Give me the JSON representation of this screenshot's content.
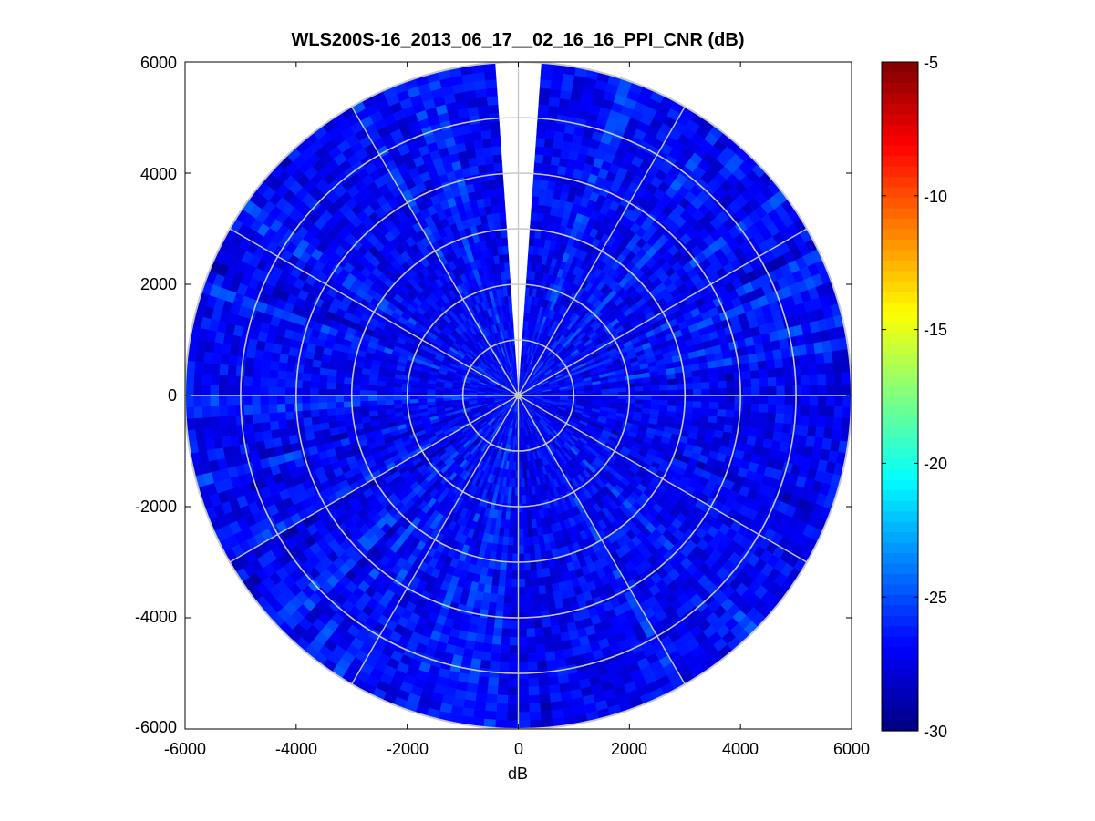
{
  "chart_data": {
    "type": "heatmap",
    "subtype": "polar-ppi",
    "title": "WLS200S-16_2013_06_17__02_16_16_PPI_CNR (dB)",
    "xlabel": "dB",
    "ylabel": "",
    "xlim": [
      -6000,
      6000
    ],
    "ylim": [
      -6000,
      6000
    ],
    "xticks": [
      "-6000",
      "-4000",
      "-2000",
      "0",
      "2000",
      "4000",
      "6000"
    ],
    "yticks": [
      "6000",
      "4000",
      "2000",
      "0",
      "-2000",
      "-4000",
      "-6000"
    ],
    "range_rings": [
      1000,
      2000,
      3000,
      4000,
      5000,
      6000
    ],
    "spoke_angles_deg": [
      0,
      30,
      60,
      90,
      120,
      150,
      180,
      210,
      240,
      270,
      300,
      330
    ],
    "max_range": 6000,
    "gap_sector_deg": [
      -4,
      4
    ],
    "grid": true,
    "colormap": "jet",
    "colorbar": {
      "limits": [
        -30,
        -5
      ],
      "tick_values": [
        -5,
        -10,
        -15,
        -20,
        -25,
        -30
      ],
      "tick_labels": [
        "-5",
        "-10",
        "-15",
        "-20",
        "-25",
        "-30"
      ]
    },
    "value_range_observed": [
      -30,
      -24
    ],
    "typical_value": -27
  },
  "colors": {
    "grid": "#c8c8c8",
    "background": "#ffffff",
    "axes": "#000000"
  }
}
